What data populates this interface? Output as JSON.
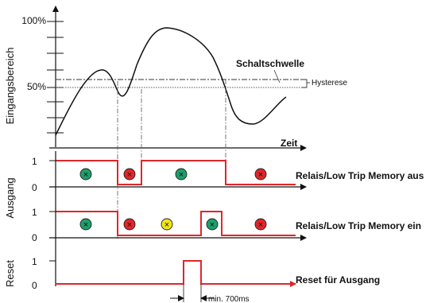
{
  "analog": {
    "y_label": "Eingangsbereich",
    "tick_100": "100%",
    "tick_50": "50%",
    "x_label": "Zeit",
    "threshold_label": "Schaltschwelle",
    "hysteresis_label": "Hysterese"
  },
  "output": {
    "y_label": "Ausgang",
    "trace1_label": "Relais/Low Trip Memory aus",
    "trace2_label": "Relais/Low Trip Memory ein",
    "level_1": "1",
    "level_0": "0"
  },
  "reset": {
    "y_label": "Reset",
    "trace_label": "Reset für Ausgang",
    "level_1": "1",
    "level_0": "0",
    "min_duration_label": "min. 700ms"
  },
  "colors": {
    "signal_red": "#e0262a",
    "led_green": "#1f9e6a",
    "led_red": "#e0262a",
    "led_yellow": "#f2e51a",
    "axis": "#111111"
  },
  "indicators": {
    "trace1": [
      "green",
      "red",
      "green",
      "red"
    ],
    "trace2": [
      "green",
      "red",
      "yellow",
      "green",
      "red"
    ]
  }
}
